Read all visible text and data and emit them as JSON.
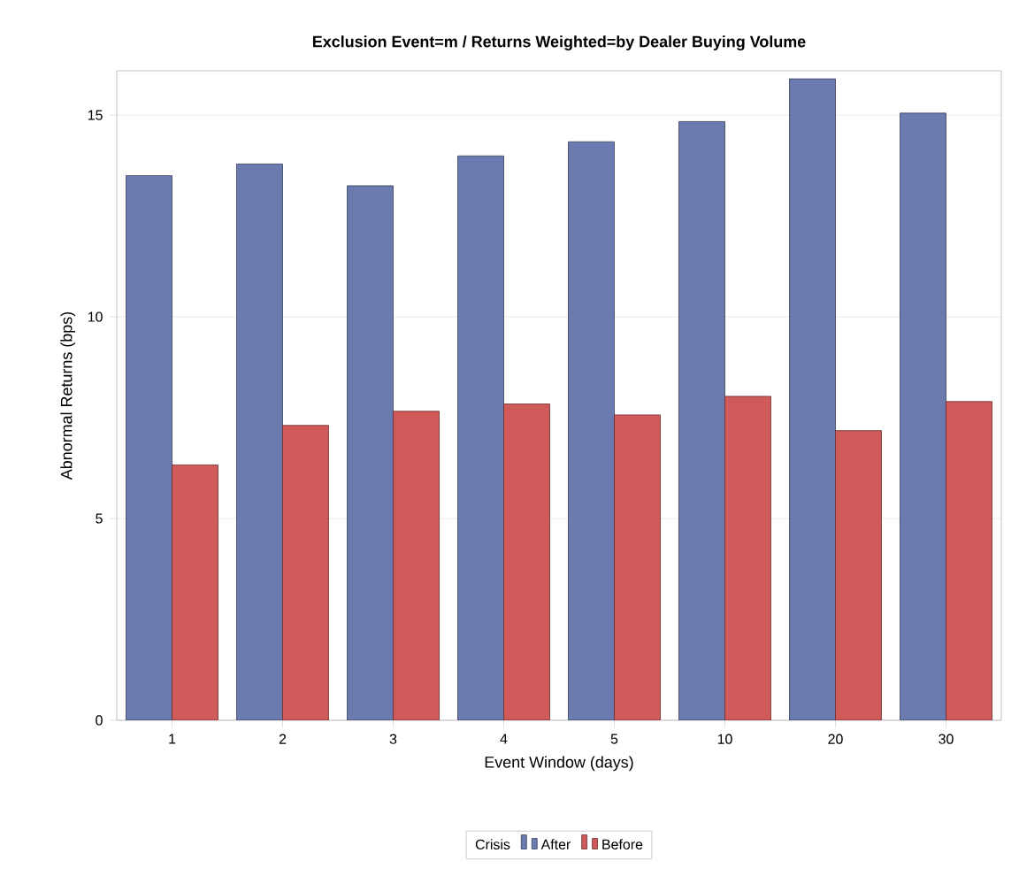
{
  "chart_data": {
    "type": "bar",
    "title": "Exclusion Event=m /  Returns Weighted=by Dealer Buying Volume",
    "xlabel": "Event Window (days)",
    "ylabel": "Abnormal Returns (bps)",
    "categories": [
      "1",
      "2",
      "3",
      "4",
      "5",
      "10",
      "20",
      "30"
    ],
    "series": [
      {
        "name": "After",
        "color": "#6b7bb0",
        "values": [
          13.5,
          13.79,
          13.25,
          13.99,
          14.34,
          14.84,
          15.9,
          15.05
        ]
      },
      {
        "name": "Before",
        "color": "#d05a5a",
        "values": [
          6.33,
          7.31,
          7.66,
          7.84,
          7.57,
          8.03,
          7.18,
          7.9
        ]
      }
    ],
    "ylim": [
      0,
      16.1
    ],
    "yticks": [
      0,
      5,
      10,
      15
    ],
    "grid": "y",
    "legend": "bottom",
    "legend_title": "Crisis"
  }
}
